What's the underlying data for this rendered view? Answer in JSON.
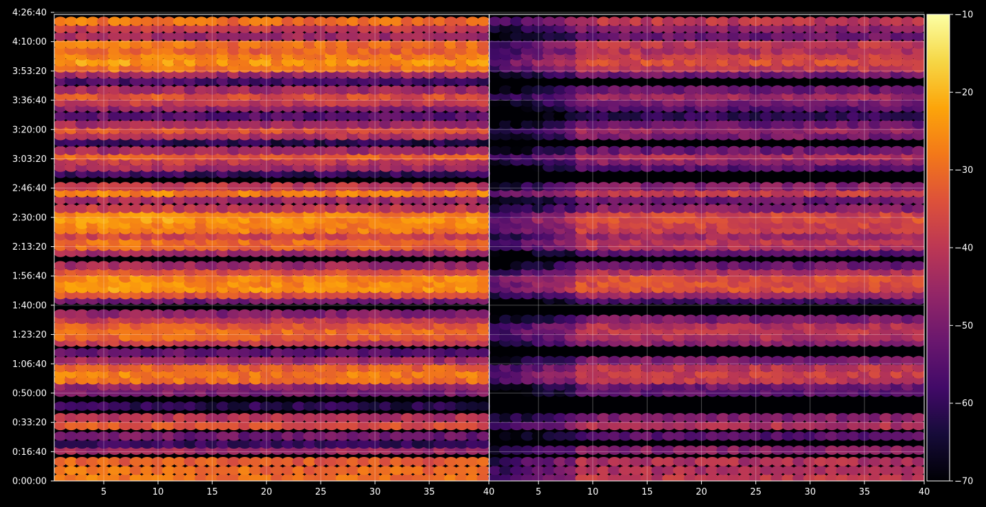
{
  "chart_data": {
    "type": "heatmap",
    "title": "",
    "xlabel": "",
    "ylabel": "",
    "panels": [
      {
        "name": "",
        "x_ticks": [
          "5",
          "10",
          "15",
          "20",
          "25",
          "30",
          "35",
          "40"
        ],
        "x_range": [
          1,
          40
        ]
      },
      {
        "name": "",
        "x_ticks": [
          "5",
          "10",
          "15",
          "20",
          "25",
          "30",
          "35",
          "40"
        ],
        "x_range": [
          1,
          40
        ]
      }
    ],
    "y_ticks": [
      "0:00:00",
      "0:16:40",
      "0:33:20",
      "0:50:00",
      "1:06:40",
      "1:23:20",
      "1:40:00",
      "1:56:40",
      "2:13:20",
      "2:30:00",
      "2:46:40",
      "3:03:20",
      "3:20:00",
      "3:36:40",
      "3:53:20",
      "4:10:00",
      "4:26:40"
    ],
    "y_range_seconds": [
      0,
      16600
    ],
    "colorbar": {
      "colormap": "inferno",
      "range": [
        -70,
        -10
      ],
      "ticks": [
        "−70",
        "−60",
        "−50",
        "−40",
        "−30",
        "−20",
        "−10"
      ]
    },
    "grid": true,
    "band_levels_dB": {
      "panel_1": [
        [
          0.3,
          -30
        ],
        [
          1.2,
          -30
        ],
        [
          2.2,
          -33
        ],
        [
          3.5,
          -45
        ],
        [
          4.2,
          -60
        ],
        [
          5.1,
          -52
        ],
        [
          6.3,
          -35
        ],
        [
          7.2,
          -42
        ],
        [
          8.5,
          -62
        ],
        [
          10.1,
          -50
        ],
        [
          10.8,
          -48
        ],
        [
          11.5,
          -30
        ],
        [
          12.2,
          -28
        ],
        [
          12.9,
          -32
        ],
        [
          13.7,
          -45
        ],
        [
          14.6,
          -55
        ],
        [
          15.8,
          -40
        ],
        [
          16.4,
          -32
        ],
        [
          17.1,
          -30
        ],
        [
          17.7,
          -33
        ],
        [
          18.4,
          -40
        ],
        [
          19.0,
          -48
        ],
        [
          20.6,
          -52
        ],
        [
          21.2,
          -35
        ],
        [
          21.9,
          -25
        ],
        [
          22.5,
          -26
        ],
        [
          23.1,
          -27
        ],
        [
          23.8,
          -35
        ],
        [
          24.5,
          -45
        ],
        [
          26.0,
          -45
        ],
        [
          26.7,
          -32
        ],
        [
          27.3,
          -30
        ],
        [
          27.9,
          -38
        ],
        [
          28.6,
          -28
        ],
        [
          29.2,
          -27
        ],
        [
          29.8,
          -25
        ],
        [
          30.4,
          -27
        ],
        [
          31.0,
          -40
        ],
        [
          32.0,
          -45
        ],
        [
          32.8,
          -28
        ],
        [
          33.5,
          -40
        ],
        [
          35.0,
          -60
        ],
        [
          35.7,
          -45
        ],
        [
          36.4,
          -40
        ],
        [
          37.0,
          -32
        ],
        [
          37.6,
          -45
        ],
        [
          38.6,
          -62
        ],
        [
          39.3,
          -42
        ],
        [
          40.0,
          -35
        ],
        [
          40.6,
          -45
        ],
        [
          41.5,
          -55
        ],
        [
          42.5,
          -48
        ],
        [
          43.1,
          -40
        ],
        [
          43.8,
          -35
        ],
        [
          44.5,
          -45
        ],
        [
          45.5,
          -58
        ],
        [
          46.3,
          -45
        ],
        [
          47.0,
          -30
        ],
        [
          47.7,
          -25
        ],
        [
          48.4,
          -28
        ],
        [
          49.0,
          -32
        ],
        [
          49.7,
          -30
        ],
        [
          50.6,
          -45
        ],
        [
          51.5,
          -40
        ],
        [
          52.3,
          -30
        ]
      ],
      "panel_2": [
        [
          0.3,
          -40
        ],
        [
          1.2,
          -42
        ],
        [
          2.2,
          -42
        ],
        [
          3.5,
          -48
        ],
        [
          5.1,
          -55
        ],
        [
          6.3,
          -42
        ],
        [
          7.2,
          -48
        ],
        [
          10.1,
          -55
        ],
        [
          10.8,
          -52
        ],
        [
          11.5,
          -40
        ],
        [
          12.2,
          -38
        ],
        [
          12.9,
          -40
        ],
        [
          13.7,
          -50
        ],
        [
          15.8,
          -48
        ],
        [
          16.4,
          -42
        ],
        [
          17.1,
          -40
        ],
        [
          17.7,
          -42
        ],
        [
          18.4,
          -50
        ],
        [
          20.6,
          -58
        ],
        [
          21.2,
          -45
        ],
        [
          21.9,
          -35
        ],
        [
          22.5,
          -35
        ],
        [
          23.1,
          -35
        ],
        [
          23.8,
          -42
        ],
        [
          24.5,
          -52
        ],
        [
          26.0,
          -55
        ],
        [
          26.7,
          -42
        ],
        [
          27.3,
          -40
        ],
        [
          27.9,
          -45
        ],
        [
          28.6,
          -38
        ],
        [
          29.2,
          -37
        ],
        [
          29.8,
          -35
        ],
        [
          30.4,
          -37
        ],
        [
          31.0,
          -48
        ],
        [
          32.0,
          -52
        ],
        [
          32.8,
          -38
        ],
        [
          33.5,
          -48
        ],
        [
          35.7,
          -55
        ],
        [
          36.4,
          -48
        ],
        [
          37.0,
          -42
        ],
        [
          37.6,
          -52
        ],
        [
          39.3,
          -50
        ],
        [
          40.0,
          -45
        ],
        [
          40.6,
          -52
        ],
        [
          41.5,
          -60
        ],
        [
          42.5,
          -55
        ],
        [
          43.1,
          -50
        ],
        [
          43.8,
          -45
        ],
        [
          44.5,
          -52
        ],
        [
          46.3,
          -52
        ],
        [
          47.0,
          -40
        ],
        [
          47.7,
          -35
        ],
        [
          48.4,
          -38
        ],
        [
          49.0,
          -42
        ],
        [
          49.7,
          -40
        ],
        [
          50.6,
          -52
        ],
        [
          51.5,
          -48
        ],
        [
          52.3,
          -40
        ]
      ]
    }
  }
}
